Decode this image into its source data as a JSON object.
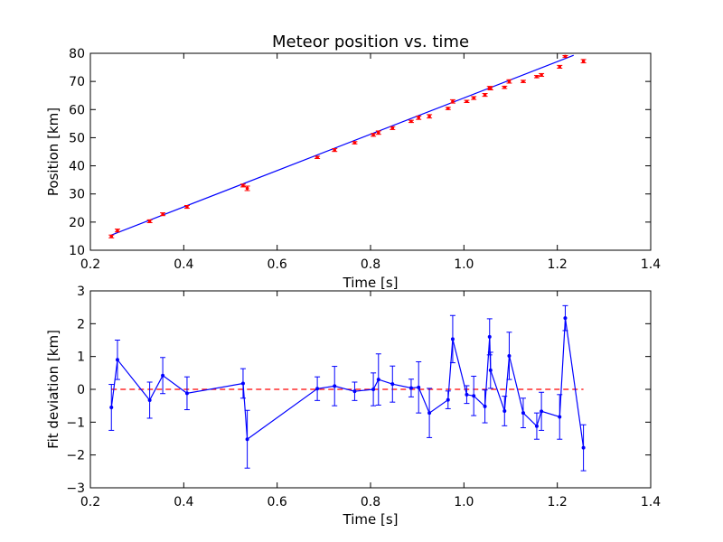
{
  "chart_data": [
    {
      "type": "scatter",
      "title": "Meteor position vs. time",
      "xlabel": "Time [s]",
      "ylabel": "Position [km]",
      "xlim": [
        0.2,
        1.4
      ],
      "ylim": [
        10,
        80
      ],
      "xticks": [
        "0.2",
        "0.4",
        "0.6",
        "0.8",
        "1.0",
        "1.2",
        "1.4"
      ],
      "yticks": [
        "10",
        "20",
        "30",
        "40",
        "50",
        "60",
        "70",
        "80"
      ],
      "grid": false,
      "legend": "none",
      "colors": {
        "points": "#ff0000",
        "fit": "#0000ff"
      },
      "series": [
        {
          "marker": "point-with-errorbar",
          "x": [
            0.245,
            0.258,
            0.327,
            0.355,
            0.407,
            0.527,
            0.536,
            0.686,
            0.723,
            0.766,
            0.806,
            0.817,
            0.847,
            0.887,
            0.903,
            0.926,
            0.966,
            0.976,
            1.006,
            1.021,
            1.045,
            1.055,
            1.057,
            1.087,
            1.097,
            1.127,
            1.156,
            1.166,
            1.205,
            1.217,
            1.256
          ],
          "y": [
            14.9,
            17.0,
            20.3,
            22.8,
            25.4,
            33.0,
            32.0,
            43.0,
            45.6,
            48.2,
            51.0,
            51.8,
            53.4,
            55.8,
            57.1,
            57.6,
            60.4,
            62.9,
            62.9,
            64.1,
            65.2,
            67.7,
            67.6,
            67.9,
            70.0,
            70.0,
            71.7,
            72.3,
            75.2,
            78.9,
            77.2
          ],
          "yerr": [
            0.5,
            0.5,
            0.5,
            0.5,
            0.5,
            0.5,
            0.8,
            0.4,
            0.5,
            0.4,
            0.5,
            0.6,
            0.5,
            0.4,
            0.6,
            0.6,
            0.4,
            0.6,
            0.4,
            0.5,
            0.5,
            0.5,
            0.6,
            0.4,
            0.6,
            0.4,
            0.4,
            0.5,
            0.5,
            0.3,
            0.6
          ]
        },
        {
          "marker": "line",
          "x": [
            0.245,
            1.235
          ],
          "y": [
            15.4,
            79.3
          ]
        }
      ]
    },
    {
      "type": "line",
      "title": "",
      "xlabel": "Time [s]",
      "ylabel": "Fit deviation [km]",
      "xlim": [
        0.2,
        1.4
      ],
      "ylim": [
        -3,
        3
      ],
      "xticks": [
        "0.2",
        "0.4",
        "0.6",
        "0.8",
        "1.0",
        "1.2",
        "1.4"
      ],
      "yticks": [
        "−3",
        "−2",
        "−1",
        "0",
        "1",
        "2",
        "3"
      ],
      "grid": false,
      "legend": "none",
      "colors": {
        "line": "#0000ff",
        "reference": "#ff0000"
      },
      "reference_line": {
        "y": 0,
        "x": [
          0.245,
          1.256
        ],
        "style": "dashed"
      },
      "series": [
        {
          "marker": "line-point-errorbar",
          "x": [
            0.245,
            0.258,
            0.327,
            0.355,
            0.407,
            0.527,
            0.536,
            0.686,
            0.723,
            0.766,
            0.806,
            0.817,
            0.847,
            0.887,
            0.903,
            0.926,
            0.966,
            0.976,
            1.006,
            1.021,
            1.045,
            1.055,
            1.057,
            1.087,
            1.097,
            1.127,
            1.156,
            1.166,
            1.205,
            1.217,
            1.256
          ],
          "y": [
            -0.55,
            0.9,
            -0.33,
            0.42,
            -0.12,
            0.18,
            -1.52,
            0.02,
            0.1,
            -0.06,
            0.0,
            0.3,
            0.16,
            0.04,
            0.06,
            -0.72,
            -0.32,
            1.53,
            -0.16,
            -0.2,
            -0.52,
            1.6,
            0.58,
            -0.66,
            1.02,
            -0.72,
            -1.12,
            -0.67,
            -0.84,
            2.17,
            -1.78
          ]
        }
      ],
      "yerr": [
        0.7,
        0.6,
        0.55,
        0.55,
        0.5,
        0.45,
        0.88,
        0.36,
        0.6,
        0.28,
        0.5,
        0.78,
        0.55,
        0.27,
        0.78,
        0.75,
        0.27,
        0.72,
        0.27,
        0.6,
        0.5,
        0.55,
        0.55,
        0.45,
        0.72,
        0.45,
        0.4,
        0.58,
        0.68,
        0.38,
        0.7
      ]
    }
  ]
}
